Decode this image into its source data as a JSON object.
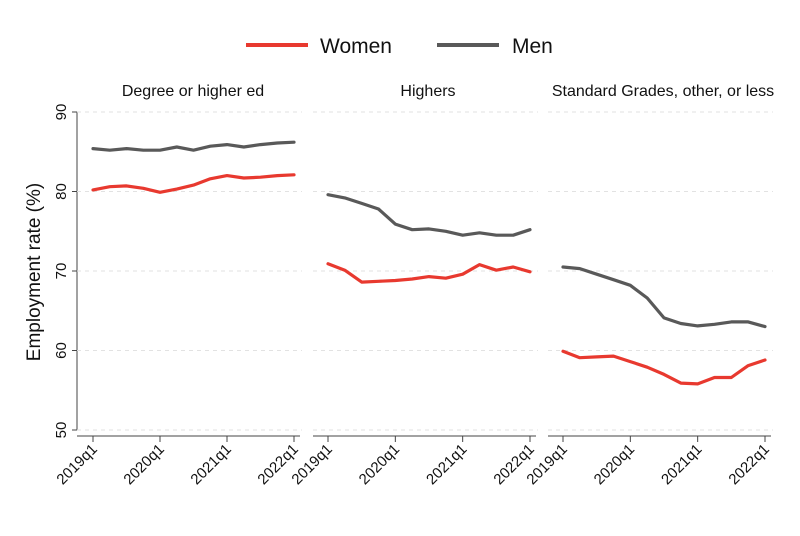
{
  "chart_data": {
    "type": "line",
    "ylabel": "Employment rate (%)",
    "ylim": [
      50,
      90
    ],
    "yticks": [
      50,
      60,
      70,
      80,
      90
    ],
    "x": [
      "2019q1",
      "2019q2",
      "2019q3",
      "2019q4",
      "2020q1",
      "2020q2",
      "2020q3",
      "2020q4",
      "2021q1",
      "2021q2",
      "2021q3",
      "2021q4",
      "2022q1"
    ],
    "xticks": [
      "2019q1",
      "2020q1",
      "2021q1",
      "2022q1"
    ],
    "grid": true,
    "legend": {
      "placement": "top-center",
      "entries": [
        {
          "name": "Women",
          "color": "#e8392f"
        },
        {
          "name": "Men",
          "color": "#595959"
        }
      ]
    },
    "panels": [
      {
        "title": "Degree or higher ed",
        "series": [
          {
            "name": "Women",
            "values": [
              80.2,
              80.6,
              80.7,
              80.4,
              79.9,
              80.3,
              80.8,
              81.6,
              82.0,
              81.7,
              81.8,
              82.0,
              82.1
            ]
          },
          {
            "name": "Men",
            "values": [
              85.4,
              85.2,
              85.4,
              85.2,
              85.2,
              85.6,
              85.2,
              85.7,
              85.9,
              85.6,
              85.9,
              86.1,
              86.2
            ]
          }
        ]
      },
      {
        "title": "Highers",
        "series": [
          {
            "name": "Women",
            "values": [
              70.9,
              70.1,
              68.6,
              68.7,
              68.8,
              69.0,
              69.3,
              69.1,
              69.6,
              70.8,
              70.1,
              70.5,
              69.9
            ]
          },
          {
            "name": "Men",
            "values": [
              79.6,
              79.2,
              78.5,
              77.8,
              75.9,
              75.2,
              75.3,
              75.0,
              74.5,
              74.8,
              74.5,
              74.5,
              75.2
            ]
          }
        ]
      },
      {
        "title": "Standard Grades, other, or less",
        "series": [
          {
            "name": "Women",
            "values": [
              59.9,
              59.1,
              59.2,
              59.3,
              58.6,
              57.9,
              57.0,
              55.9,
              55.8,
              56.6,
              56.6,
              58.1,
              58.8
            ]
          },
          {
            "name": "Men",
            "values": [
              70.5,
              70.3,
              69.6,
              68.9,
              68.2,
              66.6,
              64.1,
              63.4,
              63.1,
              63.3,
              63.6,
              63.6,
              63.0
            ]
          }
        ]
      }
    ]
  }
}
